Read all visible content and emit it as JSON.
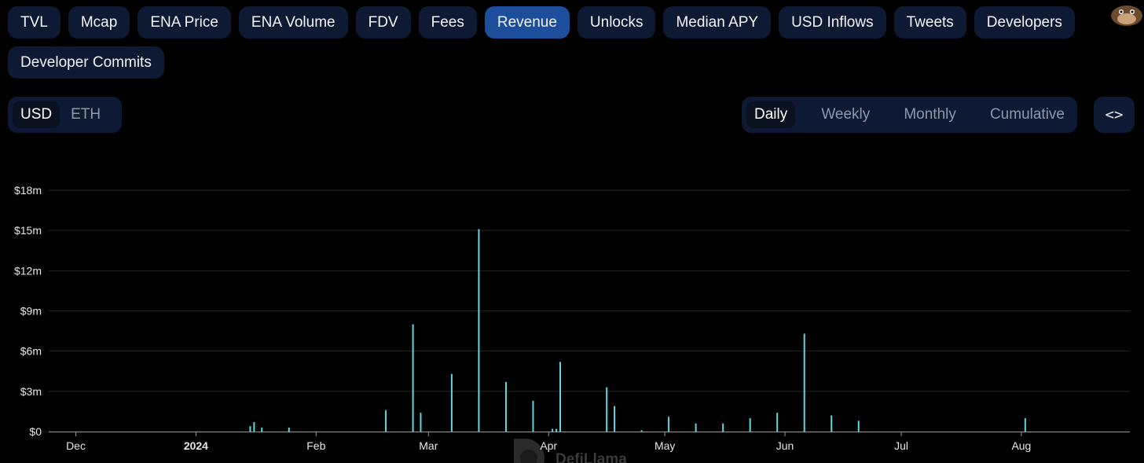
{
  "metric_tabs": [
    {
      "label": "TVL",
      "active": false
    },
    {
      "label": "Mcap",
      "active": false
    },
    {
      "label": "ENA Price",
      "active": false
    },
    {
      "label": "ENA Volume",
      "active": false
    },
    {
      "label": "FDV",
      "active": false
    },
    {
      "label": "Fees",
      "active": false
    },
    {
      "label": "Revenue",
      "active": true
    },
    {
      "label": "Unlocks",
      "active": false
    },
    {
      "label": "Median APY",
      "active": false
    },
    {
      "label": "USD Inflows",
      "active": false
    },
    {
      "label": "Tweets",
      "active": false
    },
    {
      "label": "Developers",
      "active": false
    },
    {
      "label": "Developer Commits",
      "active": false
    }
  ],
  "currency_toggle": {
    "options": [
      "USD",
      "ETH"
    ],
    "selected": "USD"
  },
  "period_toggle": {
    "options": [
      "Daily",
      "Weekly",
      "Monthly",
      "Cumulative"
    ],
    "selected": "Daily"
  },
  "embed_button": {
    "label": "<>"
  },
  "watermark": {
    "text": "DefiLlama"
  },
  "colors": {
    "bar": "#5fd6e0",
    "active_tab": "#1d4e9c",
    "tab_bg": "#0e1a33",
    "grid": "#262626"
  },
  "chart_data": {
    "type": "bar",
    "title": "",
    "xlabel": "",
    "ylabel": "",
    "ylim": [
      0,
      18000000
    ],
    "y_ticks": [
      {
        "value": 0,
        "label": "$0"
      },
      {
        "value": 3000000,
        "label": "$3m"
      },
      {
        "value": 6000000,
        "label": "$6m"
      },
      {
        "value": 9000000,
        "label": "$9m"
      },
      {
        "value": 12000000,
        "label": "$12m"
      },
      {
        "value": 15000000,
        "label": "$15m"
      },
      {
        "value": 18000000,
        "label": "$18m"
      }
    ],
    "x_ticks": [
      {
        "date": "2023-12-01",
        "label": "Dec",
        "bold": false
      },
      {
        "date": "2024-01-01",
        "label": "2024",
        "bold": true
      },
      {
        "date": "2024-02-01",
        "label": "Feb",
        "bold": false
      },
      {
        "date": "2024-03-01",
        "label": "Mar",
        "bold": false
      },
      {
        "date": "2024-04-01",
        "label": "Apr",
        "bold": false
      },
      {
        "date": "2024-05-01",
        "label": "May",
        "bold": false
      },
      {
        "date": "2024-06-01",
        "label": "Jun",
        "bold": false
      },
      {
        "date": "2024-07-01",
        "label": "Jul",
        "bold": false
      },
      {
        "date": "2024-08-01",
        "label": "Aug",
        "bold": false
      }
    ],
    "xlim": [
      "2023-11-24",
      "2024-08-29"
    ],
    "grid": true,
    "points": [
      {
        "date": "2024-01-15",
        "value": 400000
      },
      {
        "date": "2024-01-16",
        "value": 700000
      },
      {
        "date": "2024-01-18",
        "value": 300000
      },
      {
        "date": "2024-01-25",
        "value": 300000
      },
      {
        "date": "2024-02-19",
        "value": 1600000
      },
      {
        "date": "2024-02-26",
        "value": 8000000
      },
      {
        "date": "2024-02-28",
        "value": 1400000
      },
      {
        "date": "2024-03-07",
        "value": 4300000
      },
      {
        "date": "2024-03-14",
        "value": 15100000
      },
      {
        "date": "2024-03-21",
        "value": 3700000
      },
      {
        "date": "2024-03-28",
        "value": 2300000
      },
      {
        "date": "2024-04-02",
        "value": 200000
      },
      {
        "date": "2024-04-03",
        "value": 200000
      },
      {
        "date": "2024-04-04",
        "value": 5200000
      },
      {
        "date": "2024-04-16",
        "value": 3300000
      },
      {
        "date": "2024-04-18",
        "value": 1900000
      },
      {
        "date": "2024-04-25",
        "value": 100000
      },
      {
        "date": "2024-05-02",
        "value": 1100000
      },
      {
        "date": "2024-05-09",
        "value": 600000
      },
      {
        "date": "2024-05-16",
        "value": 600000
      },
      {
        "date": "2024-05-23",
        "value": 1000000
      },
      {
        "date": "2024-05-30",
        "value": 1400000
      },
      {
        "date": "2024-06-06",
        "value": 7300000
      },
      {
        "date": "2024-06-13",
        "value": 1200000
      },
      {
        "date": "2024-06-20",
        "value": 800000
      },
      {
        "date": "2024-08-02",
        "value": 1000000
      }
    ]
  }
}
